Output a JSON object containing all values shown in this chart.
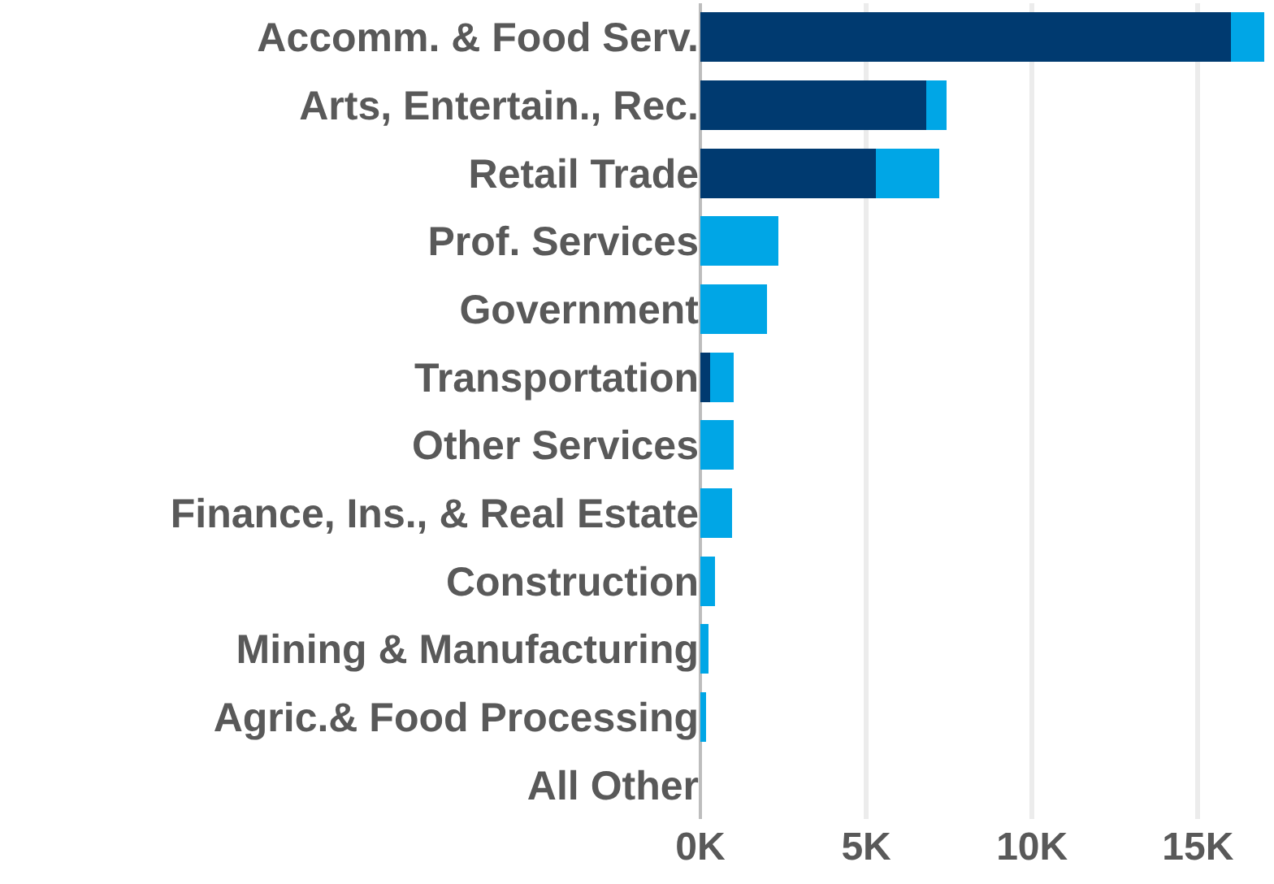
{
  "chart_data": {
    "type": "bar",
    "orientation": "horizontal",
    "stacked": true,
    "categories": [
      "Accomm. & Food Serv.",
      "Arts, Entertain., Rec.",
      "Retail Trade",
      "Prof. Services",
      "Government",
      "Transportation",
      "Other Services",
      "Finance, Ins., & Real Estate",
      "Construction",
      "Mining & Manufacturing",
      "Agric.& Food Processing",
      "All Other"
    ],
    "series": [
      {
        "color": "#003a70",
        "values": [
          16000,
          6800,
          5300,
          0,
          0,
          300,
          0,
          0,
          0,
          0,
          0,
          0
        ]
      },
      {
        "color": "#00a6e6",
        "values": [
          1000,
          630,
          1900,
          2350,
          2000,
          700,
          1000,
          950,
          450,
          250,
          180,
          0
        ]
      }
    ],
    "xlim": [
      0,
      17100
    ],
    "xticks": [
      {
        "value": 0,
        "label": "0K"
      },
      {
        "value": 5000,
        "label": "5K"
      },
      {
        "value": 10000,
        "label": "10K"
      },
      {
        "value": 15000,
        "label": "15K"
      }
    ],
    "grid": "x"
  }
}
